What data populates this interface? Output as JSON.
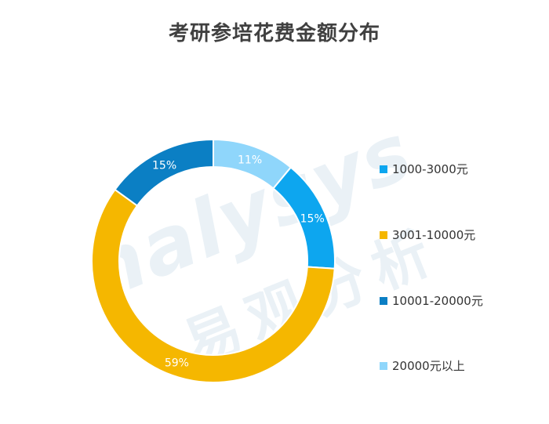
{
  "title": "考研参培花费金额分布",
  "watermark": {
    "latin": "nalysys",
    "cjk": "易观分析"
  },
  "chart_data": {
    "type": "pie",
    "variant": "donut",
    "categories": [
      "1000-3000元",
      "3001-10000元",
      "10001-20000元",
      "20000元以上"
    ],
    "values": [
      15,
      59,
      15,
      11
    ],
    "labels": [
      "15%",
      "59%",
      "15%",
      "11%"
    ],
    "colors": [
      "#0da6ef",
      "#f5b700",
      "#0b7fc4",
      "#8fd6fb"
    ],
    "legend_position": "right"
  }
}
